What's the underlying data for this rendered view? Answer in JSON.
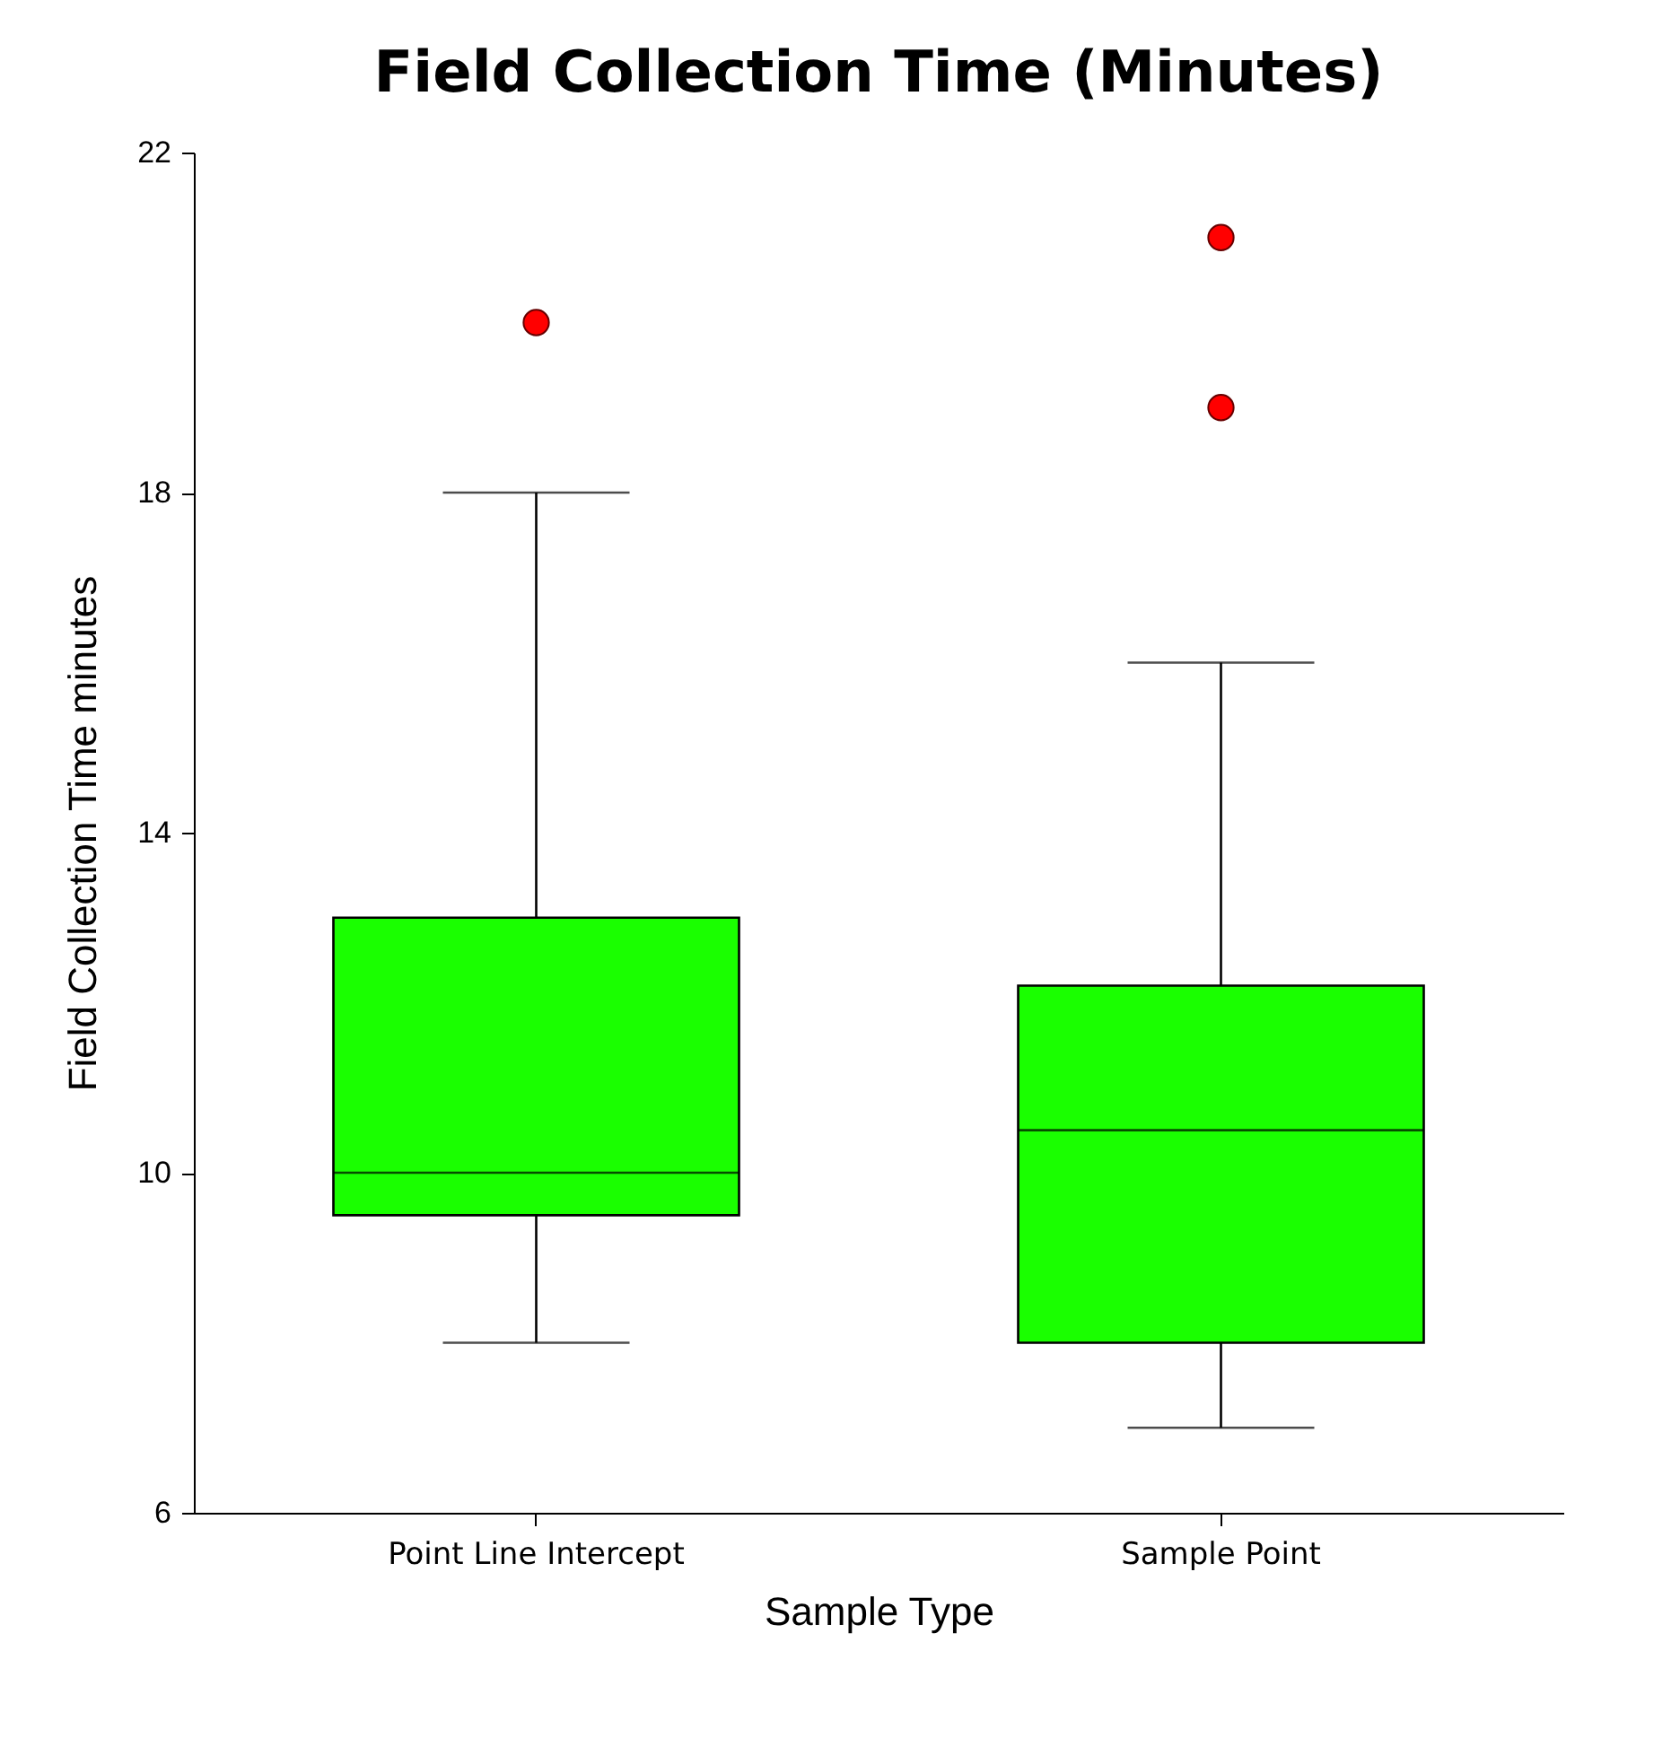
{
  "chart_data": {
    "type": "box",
    "title": "Field Collection Time (Minutes)",
    "xlabel": "Sample Type",
    "ylabel": "Field Collection Time   minutes",
    "categories": [
      "Point Line Intercept",
      "Sample Point"
    ],
    "series": [
      {
        "color": "#1aff00",
        "boxes": [
          {
            "low": 8,
            "q1": 9.5,
            "median": 10,
            "q3": 13,
            "high": 18
          },
          {
            "low": 7,
            "q1": 8,
            "median": 10.5,
            "q3": 12.2,
            "high": 16
          }
        ]
      },
      {
        "type": "scatter",
        "color": "#ff0000",
        "x": [
          "Point Line Intercept",
          "Sample Point",
          "Sample Point"
        ],
        "values": [
          20,
          21,
          19
        ]
      }
    ],
    "marker": "circle",
    "ylim": [
      6,
      22
    ],
    "yticks": [
      6,
      10,
      14,
      18,
      22
    ]
  }
}
